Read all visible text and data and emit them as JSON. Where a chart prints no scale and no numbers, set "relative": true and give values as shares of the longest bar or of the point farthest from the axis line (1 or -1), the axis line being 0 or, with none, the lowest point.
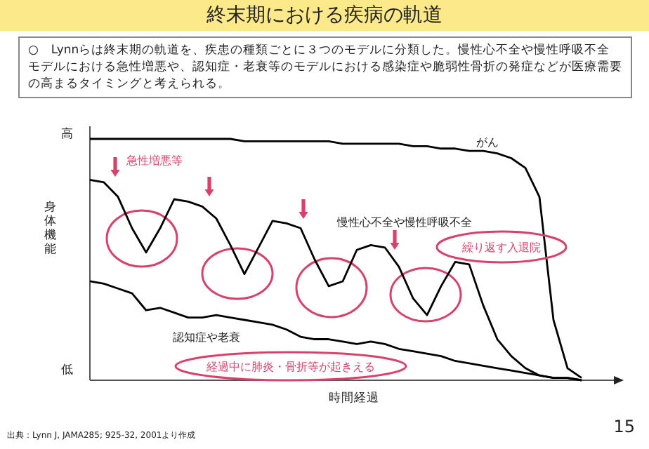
{
  "chart_data": {
    "type": "line",
    "title": "終末期における疾病の軌道",
    "subtitle": "○　Lynnらは終末期の軌道を、疾患の種類ごとに３つのモデルに分類した。慢性心不全や慢性呼吸不全モデルにおける急性増悪や、認知症・老衰等のモデルにおける感染症や脆弱性骨折の発症などが医療需要の高まるタイミングと考えられる。",
    "xlabel": "時間経過",
    "ylabel": "身体機能",
    "relative": true,
    "categories": [
      null,
      null,
      null,
      null,
      null,
      null,
      null,
      null,
      null,
      null,
      null,
      null,
      null,
      null,
      null,
      null,
      null,
      null,
      null,
      null,
      null,
      null,
      null,
      null,
      null,
      null,
      null,
      null,
      null,
      null,
      null,
      null,
      null,
      null,
      null,
      null
    ],
    "series": [
      {
        "name": "がん",
        "color": "#000000",
        "values": [
          1,
          1,
          1,
          1,
          1,
          1,
          1,
          1,
          1,
          1,
          1,
          0.99,
          0.99,
          0.99,
          0.99,
          0.99,
          0.99,
          0.99,
          0.98,
          0.98,
          0.98,
          0.98,
          0.98,
          0.97,
          0.97,
          0.96,
          0.96,
          0.95,
          0.95,
          0.94,
          0.92,
          0.88,
          0.76,
          0.25,
          0.05,
          0.01
        ]
      },
      {
        "name": "慢性心不全や慢性呼吸不全",
        "color": "#000000",
        "values": [
          0.83,
          0.82,
          0.76,
          0.63,
          0.53,
          0.63,
          0.75,
          0.74,
          0.72,
          0.67,
          0.56,
          0.44,
          0.55,
          0.66,
          0.65,
          0.63,
          0.5,
          0.39,
          0.41,
          0.54,
          0.56,
          0.55,
          0.47,
          0.34,
          0.27,
          0.39,
          0.49,
          0.48,
          0.31,
          0.17,
          0.1,
          0.05,
          0.02,
          0.01,
          0.01,
          0
        ]
      },
      {
        "name": "認知症や老衰",
        "color": "#000000",
        "values": [
          0.41,
          0.4,
          0.38,
          0.36,
          0.29,
          0.3,
          0.28,
          0.26,
          0.26,
          0.27,
          0.26,
          0.25,
          0.24,
          0.23,
          0.21,
          0.18,
          0.17,
          0.17,
          0.16,
          0.15,
          0.16,
          0.15,
          0.13,
          0.12,
          0.11,
          0.1,
          0.08,
          0.07,
          0.06,
          0.05,
          0.04,
          0.03,
          0.02,
          0.01,
          0.01,
          0
        ]
      }
    ],
    "annotations": [
      "高",
      "低",
      "急性増悪等",
      "繰り返す入退院",
      "経過中に肺炎・骨折等が起きえる",
      "出典：Lynn J, JAMA285; 925-32, 2001より作成",
      "15"
    ]
  }
}
